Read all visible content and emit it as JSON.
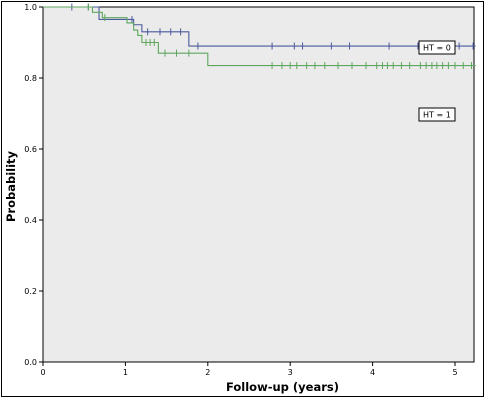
{
  "chart_data": {
    "type": "line",
    "title": "",
    "xlabel": "Follow-up (years)",
    "ylabel": "Probability",
    "xlim": [
      0,
      5.25
    ],
    "ylim": [
      0.0,
      1.0
    ],
    "x_ticks": [
      0,
      1,
      2,
      3,
      4,
      5
    ],
    "x_tick_labels": [
      "0",
      "1",
      "2",
      "3",
      "4",
      "5"
    ],
    "y_ticks": [
      0.0,
      0.2,
      0.4,
      0.6,
      0.8,
      1.0
    ],
    "y_tick_labels": [
      "0.0",
      "0.2",
      "0.4",
      "0.6",
      "0.8",
      "1.0"
    ],
    "grid": false,
    "legend_placement": "inline",
    "background_color": "#ebebeb",
    "series": [
      {
        "name": "HT = 0",
        "color": "#4a5a9c",
        "steps": [
          {
            "x": 0,
            "y": 1.0
          },
          {
            "x": 0.68,
            "y": 0.965
          },
          {
            "x": 1.1,
            "y": 0.95
          },
          {
            "x": 1.2,
            "y": 0.93
          },
          {
            "x": 1.77,
            "y": 0.89
          }
        ],
        "x_end": 5.25,
        "censored": [
          0.35,
          0.55,
          1.08,
          1.27,
          1.42,
          1.55,
          1.67,
          1.88,
          2.78,
          3.05,
          3.15,
          3.5,
          3.72,
          4.2,
          4.55,
          4.7,
          4.8,
          4.9,
          5.05,
          5.22
        ]
      },
      {
        "name": "HT = 1",
        "color": "#5ea65e",
        "steps": [
          {
            "x": 0,
            "y": 1.0
          },
          {
            "x": 0.6,
            "y": 0.985
          },
          {
            "x": 0.72,
            "y": 0.97
          },
          {
            "x": 1.02,
            "y": 0.955
          },
          {
            "x": 1.1,
            "y": 0.935
          },
          {
            "x": 1.15,
            "y": 0.92
          },
          {
            "x": 1.2,
            "y": 0.9
          },
          {
            "x": 1.4,
            "y": 0.87
          },
          {
            "x": 2.0,
            "y": 0.835
          }
        ],
        "x_end": 5.25,
        "censored": [
          0.55,
          0.75,
          1.25,
          1.3,
          1.35,
          1.48,
          1.62,
          1.77,
          2.78,
          2.9,
          3.0,
          3.08,
          3.2,
          3.3,
          3.42,
          3.58,
          3.75,
          3.92,
          4.05,
          4.12,
          4.18,
          4.25,
          4.35,
          4.45,
          4.58,
          4.65,
          4.72,
          4.78,
          4.85,
          4.92,
          5.0,
          5.1,
          5.2
        ]
      }
    ]
  }
}
